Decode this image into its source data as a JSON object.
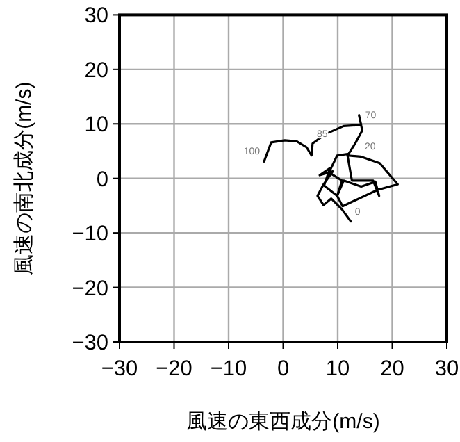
{
  "chart_data": {
    "type": "line",
    "xlabel": "風速の東西成分(m/s)",
    "ylabel": "風速の南北成分(m/s)",
    "series": [
      {
        "color": "#000000",
        "x": [
          12.4,
          10.8,
          8.8,
          7.4,
          6.3,
          7.4,
          9.1,
          6.7,
          8.6,
          7.5,
          9.9,
          11.1,
          14.3,
          16.9,
          17.6,
          16.5,
          12.6,
          11.8,
          14.2,
          17.7,
          21.0,
          17.3,
          10.9,
          9.9,
          10.8,
          8.4,
          9.9,
          12.0,
          13.2,
          14.5,
          13.9,
          14.3,
          11.1,
          7.7,
          5.4,
          5.2,
          4.3,
          2.5,
          0.3,
          -2.2,
          -3.5
        ],
        "values": [
          -7.9,
          -5.7,
          -3.7,
          -4.9,
          -3.2,
          -1.1,
          1.3,
          0.6,
          1.9,
          -1.3,
          -3.2,
          -0.4,
          -1.5,
          -0.6,
          -3.2,
          -0.4,
          -0.4,
          4.2,
          4.0,
          2.8,
          -1.1,
          -2.1,
          -5.1,
          -3.2,
          -0.4,
          1.1,
          4.2,
          4.5,
          6.4,
          8.8,
          11.6,
          9.8,
          9.6,
          8.1,
          6.4,
          4.2,
          5.7,
          6.8,
          7.0,
          6.6,
          3.1
        ]
      }
    ],
    "xlim": [
      -30,
      30
    ],
    "ylim": [
      -30,
      30
    ],
    "xticks": [
      -30,
      -20,
      -10,
      0,
      10,
      20,
      30
    ],
    "yticks": [
      -30,
      -20,
      -10,
      0,
      10,
      20,
      30
    ],
    "grid": true,
    "annotations": [
      {
        "text": "0",
        "x": 12.4,
        "y": -7.9
      },
      {
        "text": "20",
        "x": 14.2,
        "y": 4.0
      },
      {
        "text": "70",
        "x": 14.3,
        "y": 9.8
      },
      {
        "text": "85",
        "x": 5.4,
        "y": 6.4
      },
      {
        "text": "100",
        "x": -3.5,
        "y": 3.1
      }
    ]
  }
}
